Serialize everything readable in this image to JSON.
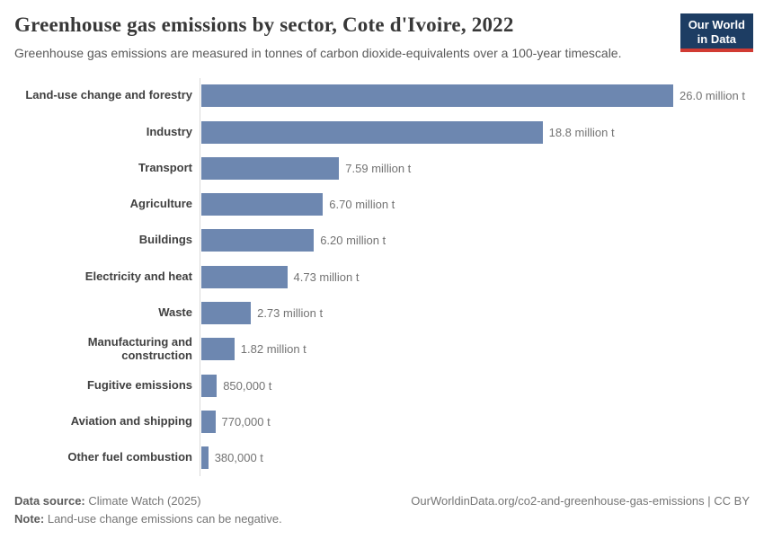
{
  "header": {
    "title": "Greenhouse gas emissions by sector, Cote d'Ivoire, 2022",
    "subtitle": "Greenhouse gas emissions are measured in tonnes of carbon dioxide-equivalents over a 100-year timescale.",
    "logo": {
      "line1": "Our World",
      "line2": "in Data"
    }
  },
  "chart_data": {
    "type": "bar",
    "orientation": "horizontal",
    "title": "Greenhouse gas emissions by sector, Cote d'Ivoire, 2022",
    "unit": "tonnes of CO2-equivalents",
    "categories": [
      "Land-use change and forestry",
      "Industry",
      "Transport",
      "Agriculture",
      "Buildings",
      "Electricity and heat",
      "Waste",
      "Manufacturing and construction",
      "Fugitive emissions",
      "Aviation and shipping",
      "Other fuel combustion"
    ],
    "values_million_t": [
      26.0,
      18.8,
      7.59,
      6.7,
      6.2,
      4.73,
      2.73,
      1.82,
      0.85,
      0.77,
      0.38
    ],
    "value_labels": [
      "26.0 million t",
      "18.8 million t",
      "7.59 million t",
      "6.70 million t",
      "6.20 million t",
      "4.73 million t",
      "2.73 million t",
      "1.82 million t",
      "850,000 t",
      "770,000 t",
      "380,000 t"
    ],
    "xlim": [
      0,
      26.0
    ],
    "grid": false,
    "legend": false
  },
  "colors": {
    "bar": "#6d87b0",
    "axis_line": "#d9d9d9",
    "logo_bg": "#1d3d63",
    "logo_accent": "#d13b33"
  },
  "footer": {
    "data_source_label": "Data source:",
    "data_source_value": "Climate Watch (2025)",
    "note_label": "Note:",
    "note_value": "Land-use change emissions can be negative.",
    "link": "OurWorldinData.org/co2-and-greenhouse-gas-emissions | CC BY"
  }
}
